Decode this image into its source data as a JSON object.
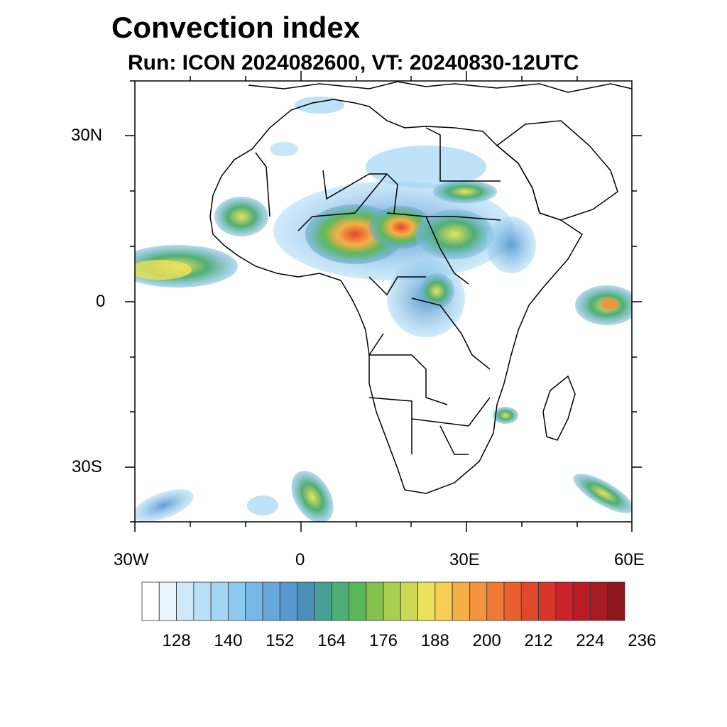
{
  "header": {
    "title": "Convection index",
    "subtitle": "Run: ICON 2024082600,  VT: 20240830-12UTC"
  },
  "map": {
    "lat_labels": [
      "30N",
      "0",
      "30S"
    ],
    "lon_labels": [
      "30W",
      "0",
      "30E",
      "60E"
    ],
    "lon_range": [
      -30,
      60
    ],
    "lat_range": [
      -40,
      40
    ]
  },
  "colorbar": {
    "colors": [
      "#ffffff",
      "#e8f5fc",
      "#cfe9f8",
      "#b9e0f6",
      "#a2d6f4",
      "#8ccaef",
      "#78b8e6",
      "#66a8dc",
      "#5898cf",
      "#4a8fb6",
      "#479f98",
      "#4fae75",
      "#5bb85a",
      "#86c14f",
      "#aacf50",
      "#cdd955",
      "#ece25a",
      "#f8cd53",
      "#f6af46",
      "#f3943c",
      "#ee7a35",
      "#e7602e",
      "#e0482b",
      "#d83529",
      "#c92229",
      "#b91b26",
      "#a61a22",
      "#8e181d"
    ],
    "labels": [
      "128",
      "140",
      "152",
      "164",
      "176",
      "188",
      "200",
      "212",
      "224",
      "236"
    ]
  }
}
